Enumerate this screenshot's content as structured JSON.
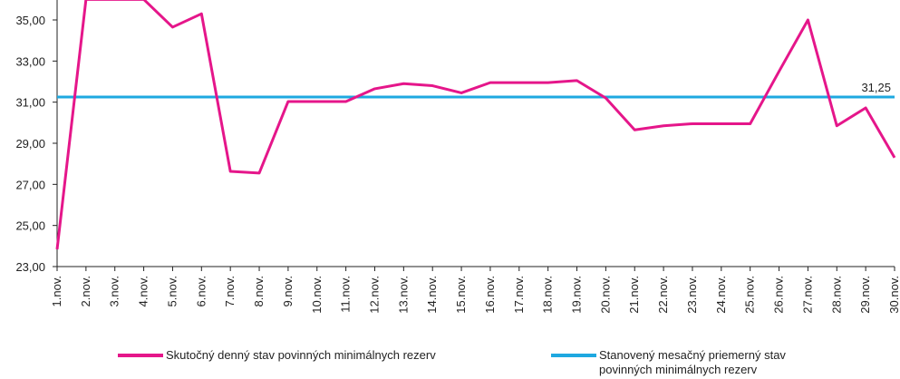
{
  "chart_data": {
    "type": "line",
    "categories": [
      "1.nov.",
      "2.nov.",
      "3.nov.",
      "4.nov.",
      "5.nov.",
      "6.nov.",
      "7.nov.",
      "8.nov.",
      "9.nov.",
      "10.nov.",
      "11.nov.",
      "12.nov.",
      "13.nov.",
      "14.nov.",
      "15.nov.",
      "16.nov.",
      "17.nov.",
      "18.nov.",
      "19.nov.",
      "20.nov.",
      "21.nov.",
      "22.nov.",
      "23.nov.",
      "24.nov.",
      "25.nov.",
      "26.nov.",
      "27.nov.",
      "28.nov.",
      "29.nov.",
      "30.nov."
    ],
    "series": [
      {
        "name": "Skutočný denný stav povinných minimálnych rezerv",
        "color": "#e5168a",
        "values": [
          23.84,
          36.0,
          36.0,
          36.0,
          34.65,
          35.3,
          27.63,
          27.55,
          31.03,
          31.03,
          31.03,
          31.65,
          31.9,
          31.8,
          31.45,
          31.95,
          31.95,
          31.95,
          32.05,
          31.2,
          29.65,
          29.85,
          29.95,
          29.95,
          29.95,
          32.5,
          35.0,
          29.85,
          30.72,
          28.3
        ]
      }
    ],
    "reference_line": {
      "name": "Stanovený mesačný priemerný stav povinných minimálnych rezerv",
      "color": "#1ea8e0",
      "value": 31.25,
      "value_label": "31,25"
    },
    "ylim": [
      23,
      36
    ],
    "yticks": [
      {
        "value": 23,
        "label": "23,00"
      },
      {
        "value": 25,
        "label": "25,00"
      },
      {
        "value": 27,
        "label": "27,00"
      },
      {
        "value": 29,
        "label": "29,00"
      },
      {
        "value": 31,
        "label": "31,00"
      },
      {
        "value": 33,
        "label": "33,00"
      },
      {
        "value": 35,
        "label": "35,00"
      }
    ],
    "grid": false
  }
}
